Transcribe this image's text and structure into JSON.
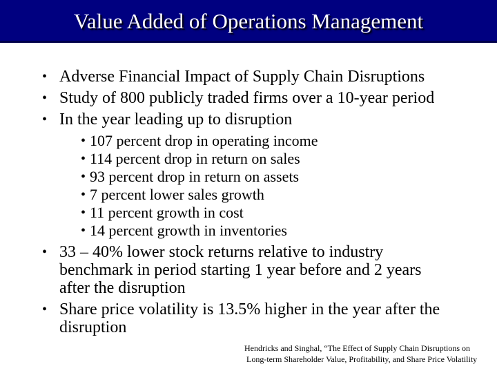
{
  "slide": {
    "title": "Value Added of Operations Management",
    "bullet_char": "•",
    "bullets": [
      {
        "level": 1,
        "text": "Adverse Financial Impact of Supply Chain Disruptions"
      },
      {
        "level": 1,
        "text": "Study of 800 publicly traded firms over a 10-year period"
      },
      {
        "level": 1,
        "text": "In the year leading up to disruption"
      },
      {
        "level": 2,
        "text": "107 percent drop in operating income"
      },
      {
        "level": 2,
        "text": "114 percent drop in return on sales"
      },
      {
        "level": 2,
        "text": "93 percent drop in return on assets"
      },
      {
        "level": 2,
        "text": "7 percent lower sales growth"
      },
      {
        "level": 2,
        "text": "11 percent growth in cost"
      },
      {
        "level": 2,
        "text": "14 percent growth in inventories"
      },
      {
        "level": 1,
        "text": "33 – 40% lower stock returns relative to industry benchmark in period starting 1 year before and 2 years after the disruption"
      },
      {
        "level": 1,
        "text": "Share price volatility is 13.5% higher in the year after the disruption"
      }
    ],
    "citation": {
      "line1": "Hendricks and Singhal, “The Effect of Supply Chain Disruptions on",
      "line2": "Long-term Shareholder Value, Profitability, and Share Price Volatility"
    },
    "colors": {
      "title_bar_bg": "#000080",
      "title_bar_edge": "#00004a",
      "title_text": "#ffffff",
      "body_text": "#000000",
      "background": "#ffffff"
    }
  }
}
